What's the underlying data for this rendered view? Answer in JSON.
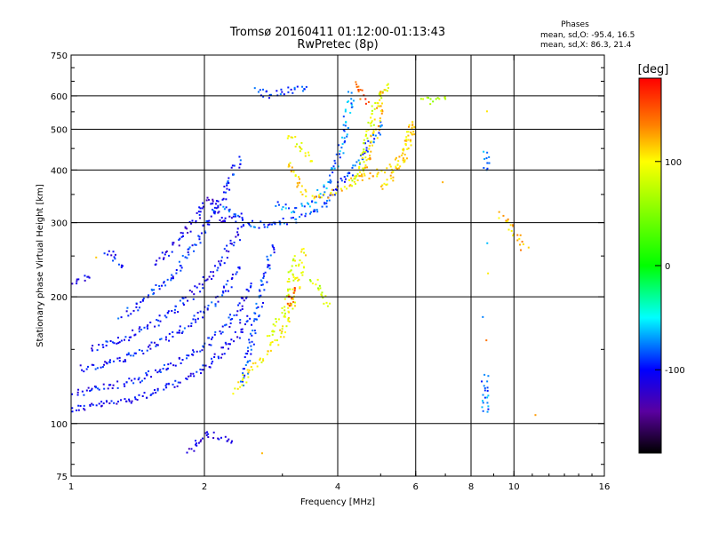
{
  "chart_data": {
    "type": "scatter",
    "title": "Tromsø 20160411 01:12:00-01:13:43",
    "subtitle": "RwPretec (8p)",
    "xlabel": "Frequency [MHz]",
    "ylabel": "Stationary phase Virtual Height [km]",
    "x_scale": "log",
    "y_scale": "log",
    "xlim": [
      1,
      16
    ],
    "ylim": [
      75,
      750
    ],
    "x_ticks": [
      "1",
      "2",
      "4",
      "6",
      "8",
      "10",
      "16"
    ],
    "x_grid": [
      2,
      4,
      6,
      8,
      10
    ],
    "y_ticks": [
      "75",
      "100",
      "200",
      "300",
      "400",
      "500",
      "600",
      "750"
    ],
    "y_grid": [
      100,
      200,
      300,
      400,
      500,
      600
    ],
    "grid": true,
    "phase_title": "Phases",
    "phase_stats": [
      "mean, sd,O:  -95.4, 16.5",
      "mean, sd,X:  86.3, 21.4"
    ],
    "colorbar": {
      "label": "[deg]",
      "range": [
        -180,
        180
      ],
      "ticks": [
        "100",
        "0",
        "-100"
      ],
      "tick_values": [
        100,
        0,
        -100
      ],
      "colors": [
        "#ff0000",
        "#ff8000",
        "#ffff00",
        "#00ff00",
        "#00ffff",
        "#0000ff",
        "#5a00a0",
        "#000000"
      ]
    },
    "series": [
      {
        "mode": "O",
        "color_by": "phase",
        "traces": [
          {
            "points": [
              [
                1.0,
                108
              ],
              [
                1.1,
                110
              ],
              [
                1.25,
                112
              ],
              [
                1.45,
                116
              ],
              [
                1.7,
                123
              ],
              [
                1.95,
                133
              ],
              [
                2.15,
                145
              ],
              [
                2.35,
                160
              ],
              [
                2.5,
                180
              ]
            ],
            "phase": -105
          },
          {
            "points": [
              [
                1.0,
                118
              ],
              [
                1.12,
                120
              ],
              [
                1.3,
                124
              ],
              [
                1.5,
                130
              ],
              [
                1.75,
                140
              ],
              [
                1.95,
                150
              ],
              [
                2.2,
                168
              ],
              [
                2.4,
                190
              ],
              [
                2.55,
                215
              ]
            ],
            "phase": -100
          },
          {
            "points": [
              [
                1.05,
                135
              ],
              [
                1.2,
                138
              ],
              [
                1.4,
                146
              ],
              [
                1.6,
                156
              ],
              [
                1.8,
                168
              ],
              [
                2.0,
                183
              ],
              [
                2.2,
                205
              ],
              [
                2.4,
                235
              ]
            ],
            "phase": -98
          },
          {
            "points": [
              [
                1.1,
                150
              ],
              [
                1.3,
                158
              ],
              [
                1.5,
                170
              ],
              [
                1.7,
                185
              ],
              [
                1.9,
                205
              ],
              [
                2.1,
                230
              ],
              [
                2.3,
                262
              ],
              [
                2.45,
                295
              ]
            ],
            "phase": -102
          },
          {
            "points": [
              [
                1.3,
                180
              ],
              [
                1.5,
                200
              ],
              [
                1.7,
                225
              ],
              [
                1.85,
                255
              ],
              [
                2.0,
                290
              ],
              [
                2.15,
                330
              ],
              [
                2.3,
                380
              ],
              [
                2.4,
                430
              ]
            ],
            "phase": -96
          },
          {
            "points": [
              [
                1.55,
                240
              ],
              [
                1.75,
                270
              ],
              [
                1.9,
                305
              ],
              [
                2.05,
                345
              ],
              [
                2.2,
                300
              ],
              [
                2.4,
                310
              ]
            ],
            "phase": -110
          },
          {
            "points": [
              [
                2.2,
                330
              ],
              [
                2.5,
                300
              ],
              [
                2.7,
                295
              ],
              [
                2.9,
                300
              ],
              [
                3.1,
                303
              ],
              [
                3.3,
                308
              ],
              [
                3.5,
                315
              ],
              [
                3.7,
                330
              ],
              [
                3.9,
                350
              ],
              [
                4.1,
                375
              ],
              [
                4.3,
                400
              ],
              [
                4.5,
                425
              ],
              [
                4.7,
                455
              ],
              [
                4.9,
                490
              ],
              [
                5.0,
                520
              ]
            ],
            "phase": -88
          },
          {
            "points": [
              [
                2.9,
                330
              ],
              [
                3.2,
                320
              ],
              [
                3.5,
                335
              ],
              [
                3.8,
                370
              ],
              [
                4.0,
                420
              ],
              [
                4.15,
                500
              ],
              [
                4.25,
                560
              ],
              [
                4.3,
                610
              ]
            ],
            "phase": -75
          },
          {
            "points": [
              [
                2.6,
                620
              ],
              [
                2.8,
                605
              ],
              [
                3.0,
                615
              ],
              [
                3.2,
                625
              ],
              [
                3.4,
                630
              ]
            ],
            "phase": -90
          },
          {
            "points": [
              [
                2.45,
                125
              ],
              [
                2.55,
                155
              ],
              [
                2.65,
                190
              ],
              [
                2.75,
                230
              ],
              [
                2.85,
                265
              ]
            ],
            "phase": -92
          },
          {
            "points": [
              [
                1.0,
                215
              ],
              [
                1.05,
                218
              ],
              [
                1.1,
                222
              ]
            ],
            "phase": -108
          },
          {
            "points": [
              [
                1.2,
                260
              ],
              [
                1.25,
                245
              ],
              [
                1.3,
                235
              ]
            ],
            "phase": -104
          },
          {
            "points": [
              [
                8.6,
                105
              ],
              [
                8.6,
                130
              ],
              [
                8.6,
                180
              ],
              [
                8.65,
                270
              ],
              [
                8.65,
                400
              ],
              [
                8.7,
                440
              ]
            ],
            "phase": -80
          },
          {
            "points": [
              [
                1.85,
                85
              ],
              [
                2.05,
                95
              ],
              [
                2.3,
                90
              ]
            ],
            "phase": -110
          }
        ]
      },
      {
        "mode": "X",
        "color_by": "phase",
        "traces": [
          {
            "points": [
              [
                2.35,
                120
              ],
              [
                2.5,
                130
              ],
              [
                2.65,
                140
              ],
              [
                2.8,
                150
              ],
              [
                2.95,
                160
              ],
              [
                3.05,
                170
              ],
              [
                3.15,
                185
              ],
              [
                3.2,
                200
              ],
              [
                3.25,
                215
              ],
              [
                3.3,
                235
              ],
              [
                3.35,
                260
              ]
            ],
            "phase": 100
          },
          {
            "points": [
              [
                2.8,
                160
              ],
              [
                3.0,
                180
              ],
              [
                3.1,
                205
              ],
              [
                3.15,
                230
              ],
              [
                3.2,
                250
              ]
            ],
            "phase": 90
          },
          {
            "points": [
              [
                3.1,
                420
              ],
              [
                3.2,
                390
              ],
              [
                3.3,
                360
              ],
              [
                3.45,
                350
              ],
              [
                3.6,
                345
              ],
              [
                3.8,
                350
              ],
              [
                4.0,
                360
              ],
              [
                4.2,
                370
              ],
              [
                4.4,
                380
              ],
              [
                4.6,
                385
              ],
              [
                4.8,
                390
              ],
              [
                5.0,
                395
              ],
              [
                5.2,
                400
              ],
              [
                5.4,
                410
              ],
              [
                5.6,
                430
              ],
              [
                5.8,
                470
              ],
              [
                5.9,
                520
              ]
            ],
            "phase": 110
          },
          {
            "points": [
              [
                3.05,
                480
              ],
              [
                3.2,
                470
              ],
              [
                3.35,
                440
              ],
              [
                3.5,
                420
              ]
            ],
            "phase": 95
          },
          {
            "points": [
              [
                4.3,
                370
              ],
              [
                4.5,
                400
              ],
              [
                4.65,
                460
              ],
              [
                4.75,
                520
              ],
              [
                4.85,
                560
              ],
              [
                5.0,
                600
              ],
              [
                5.2,
                640
              ]
            ],
            "phase": 85
          },
          {
            "points": [
              [
                5.0,
                360
              ],
              [
                5.3,
                380
              ],
              [
                5.6,
                420
              ],
              [
                5.8,
                470
              ],
              [
                5.9,
                520
              ]
            ],
            "phase": 110
          },
          {
            "points": [
              [
                3.5,
                220
              ],
              [
                3.6,
                215
              ],
              [
                3.75,
                198
              ],
              [
                3.8,
                190
              ]
            ],
            "phase": 80
          },
          {
            "points": [
              [
                4.5,
                380
              ],
              [
                4.7,
                430
              ],
              [
                4.9,
                500
              ],
              [
                5.0,
                560
              ],
              [
                5.1,
                620
              ]
            ],
            "phase": 115
          },
          {
            "points": [
              [
                4.4,
                650
              ],
              [
                4.55,
                600
              ],
              [
                4.7,
                580
              ]
            ],
            "phase": 150
          },
          {
            "points": [
              [
                3.1,
                190
              ],
              [
                3.15,
                200
              ],
              [
                3.2,
                210
              ]
            ],
            "phase": 160
          },
          {
            "points": [
              [
                7.0,
                380
              ],
              [
                8.6,
                160
              ],
              [
                8.6,
                230
              ],
              [
                8.65,
                550
              ],
              [
                9.3,
                315
              ],
              [
                10.6,
                260
              ],
              [
                11.0,
                105
              ],
              [
                1.15,
                245
              ],
              [
                2.7,
                85
              ]
            ],
            "phase": 120
          },
          {
            "points": [
              [
                6.2,
                580
              ],
              [
                6.6,
                590
              ],
              [
                7.0,
                590
              ]
            ],
            "phase": 70
          }
        ]
      }
    ]
  }
}
